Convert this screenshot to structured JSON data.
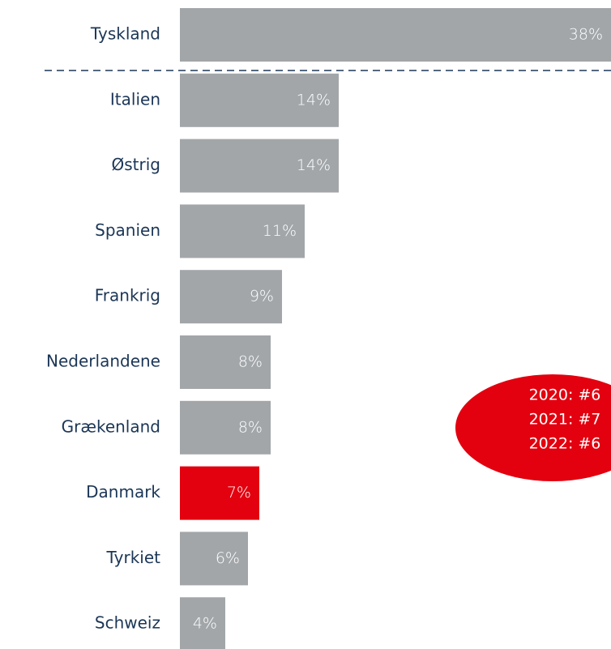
{
  "chart_data": {
    "type": "bar",
    "orientation": "horizontal",
    "categories": [
      "Tyskland",
      "Italien",
      "Østrig",
      "Spanien",
      "Frankrig",
      "Nederlandene",
      "Grækenland",
      "Danmark",
      "Tyrkiet",
      "Schweiz"
    ],
    "values": [
      38,
      14,
      14,
      11,
      9,
      8,
      8,
      7,
      6,
      4
    ],
    "value_labels": [
      "38%",
      "14%",
      "14%",
      "11%",
      "9%",
      "8%",
      "8%",
      "7%",
      "6%",
      "4%"
    ],
    "colors": [
      "#a2a6a9",
      "#a2a6a9",
      "#a2a6a9",
      "#a2a6a9",
      "#a2a6a9",
      "#a2a6a9",
      "#a2a6a9",
      "#e3000f",
      "#a2a6a9",
      "#a2a6a9"
    ],
    "annotation": [
      "2020: #6",
      "2021: #7",
      "2022: #6"
    ],
    "annotation_color": "#e3000f"
  }
}
